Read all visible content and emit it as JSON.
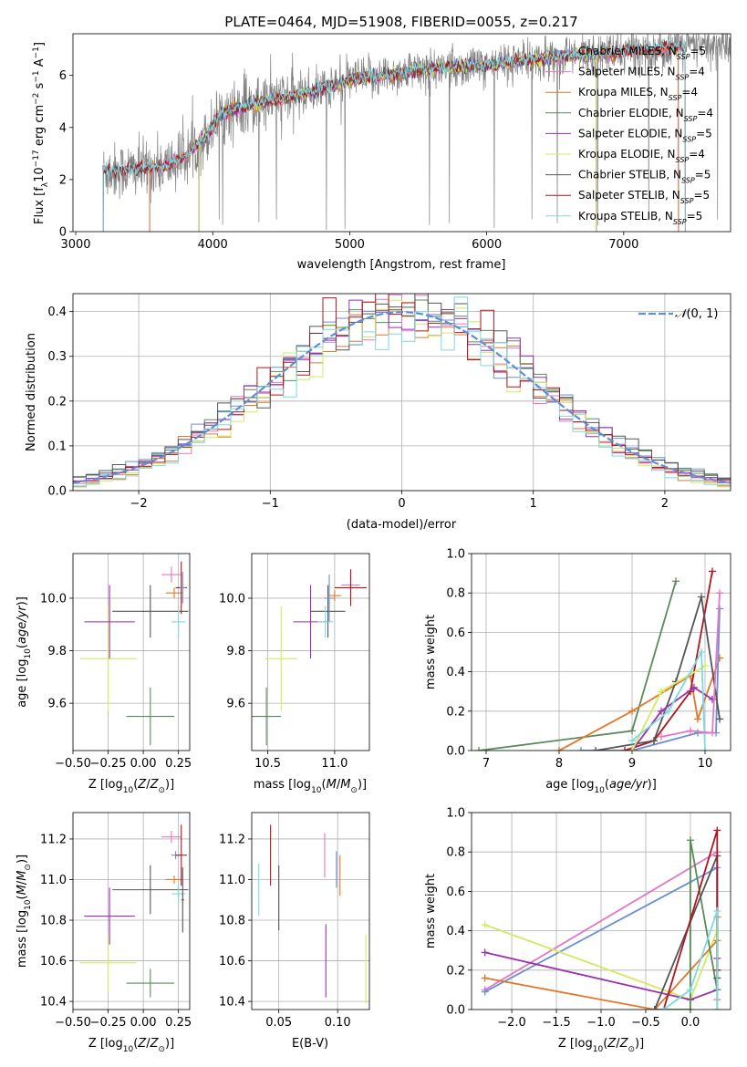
{
  "title": "PLATE=0464, MJD=51908, FIBERID=0055, z=0.217",
  "colors": {
    "chab_miles": "#6a8fd0",
    "salp_miles": "#e377c2",
    "krou_miles": "#e2772a",
    "chab_elodie": "#5a8a5a",
    "salp_elodie": "#9b2fae",
    "krou_elodie": "#d4ea5e",
    "chab_stelib": "#555555",
    "salp_stelib": "#b0141e",
    "krou_stelib": "#7fd8e0",
    "data": "#808080",
    "normal": "#5b8fd9"
  },
  "chart_data": [
    {
      "id": "spectrum",
      "type": "line",
      "xlabel": "wavelength [Angstrom, rest frame]",
      "ylabel": "Flux [f",
      "xlim": [
        2980,
        7780
      ],
      "ylim": [
        0,
        7.6
      ],
      "xticks": [
        3000,
        4000,
        5000,
        6000,
        7000
      ],
      "yticks": [
        0,
        2,
        4,
        6
      ],
      "legend": [
        {
          "key": "chab_miles",
          "label": "Chabrier MILES, N",
          "sub": "SSP",
          "tail": "=5"
        },
        {
          "key": "salp_miles",
          "label": "Salpeter MILES, N",
          "sub": "SSP",
          "tail": "=4"
        },
        {
          "key": "krou_miles",
          "label": "Kroupa MILES, N",
          "sub": "SSP",
          "tail": "=4"
        },
        {
          "key": "chab_elodie",
          "label": "Chabrier ELODIE, N",
          "sub": "SSP",
          "tail": "=4"
        },
        {
          "key": "salp_elodie",
          "label": "Salpeter ELODIE, N",
          "sub": "SSP",
          "tail": "=5"
        },
        {
          "key": "krou_elodie",
          "label": "Kroupa ELODIE, N",
          "sub": "SSP",
          "tail": "=4"
        },
        {
          "key": "chab_stelib",
          "label": "Chabrier STELIB, N",
          "sub": "SSP",
          "tail": "=5"
        },
        {
          "key": "salp_stelib",
          "label": "Salpeter STELIB, N",
          "sub": "SSP",
          "tail": "=5"
        },
        {
          "key": "krou_stelib",
          "label": "Kroupa STELIB, N",
          "sub": "SSP",
          "tail": "=5"
        }
      ],
      "continuum": [
        [
          3200,
          2.3
        ],
        [
          3500,
          2.4
        ],
        [
          3650,
          2.5
        ],
        [
          3800,
          2.9
        ],
        [
          3950,
          3.6
        ],
        [
          4050,
          4.5
        ],
        [
          4300,
          4.9
        ],
        [
          4600,
          5.2
        ],
        [
          5000,
          5.8
        ],
        [
          5500,
          6.2
        ],
        [
          6000,
          6.4
        ],
        [
          6500,
          6.7
        ],
        [
          7000,
          6.9
        ],
        [
          7450,
          7.1
        ]
      ],
      "model_starts": {
        "chab_miles": 3540,
        "salp_miles": 3540,
        "krou_miles": 3540,
        "chab_elodie": 3900,
        "salp_elodie": 3900,
        "krou_elodie": 3900,
        "chab_stelib": 3200,
        "salp_stelib": 3200,
        "krou_stelib": 3200
      },
      "model_ends": {
        "chab_miles": 7400,
        "salp_miles": 7400,
        "krou_miles": 7400,
        "chab_elodie": 6800,
        "salp_elodie": 6800,
        "krou_elodie": 6800,
        "chab_stelib": 7450,
        "salp_stelib": 7450,
        "krou_stelib": 7450
      }
    },
    {
      "id": "residuals",
      "type": "histogram",
      "xlabel": "(data-model)/error",
      "ylabel": "Normed distribution",
      "xlim": [
        -2.5,
        2.5
      ],
      "ylim": [
        0,
        0.44
      ],
      "xticks": [
        -2,
        -1,
        0,
        1,
        2
      ],
      "yticks": [
        0.0,
        0.1,
        0.2,
        0.3,
        0.4
      ],
      "legend_label": "(0, 1)",
      "bin_width": 0.1,
      "series_keys": [
        "chab_miles",
        "salp_miles",
        "krou_miles",
        "chab_elodie",
        "salp_elodie",
        "krou_elodie",
        "chab_stelib",
        "salp_stelib",
        "krou_stelib"
      ]
    },
    {
      "id": "age_vs_Z",
      "type": "errorbar",
      "xlabel": "Z [log",
      "ylabel": "age  [log",
      "xlim": [
        -0.5,
        0.33
      ],
      "ylim": [
        9.42,
        10.17
      ],
      "xticks": [
        -0.5,
        -0.25,
        0.0,
        0.25
      ],
      "yticks": [
        9.6,
        9.8,
        10.0
      ],
      "points": [
        {
          "key": "krou_elodie",
          "x": -0.25,
          "xerr": 0.2,
          "y": 9.77,
          "yerr": 0.2
        },
        {
          "key": "salp_elodie",
          "x": -0.24,
          "xerr": 0.18,
          "y": 9.91,
          "yerr": 0.14
        },
        {
          "key": "chab_elodie",
          "x": 0.05,
          "xerr": 0.17,
          "y": 9.55,
          "yerr": 0.11
        },
        {
          "key": "chab_stelib",
          "x": 0.05,
          "xerr": 0.27,
          "y": 9.95,
          "yerr": 0.1
        },
        {
          "key": "krou_stelib",
          "x": 0.25,
          "xerr": 0.05,
          "y": 9.91,
          "yerr": 0.06
        },
        {
          "key": "salp_miles",
          "x": 0.2,
          "xerr": 0.07,
          "y": 10.09,
          "yerr": 0.03
        },
        {
          "key": "krou_miles",
          "x": 0.22,
          "xerr": 0.06,
          "y": 10.02,
          "yerr": 0.02
        },
        {
          "key": "salp_stelib",
          "x": 0.27,
          "xerr": 0.04,
          "y": 10.04,
          "yerr": 0.1
        },
        {
          "key": "chab_miles",
          "x": 0.28,
          "xerr": 0.02,
          "y": 10.04,
          "yerr": 0.06
        }
      ]
    },
    {
      "id": "age_vs_mass",
      "type": "errorbar",
      "xlabel": "mass [log",
      "ylabel": "",
      "xlim": [
        10.38,
        11.26
      ],
      "ylim": [
        9.42,
        10.17
      ],
      "xticks": [
        10.5,
        11.0
      ],
      "yticks": [
        9.6,
        9.8,
        10.0
      ],
      "points": [
        {
          "key": "krou_elodie",
          "x": 10.6,
          "xerr": 0.12,
          "y": 9.77,
          "yerr": 0.2
        },
        {
          "key": "chab_elodie",
          "x": 10.49,
          "xerr": 0.11,
          "y": 9.55,
          "yerr": 0.11
        },
        {
          "key": "salp_elodie",
          "x": 10.82,
          "xerr": 0.13,
          "y": 9.91,
          "yerr": 0.14
        },
        {
          "key": "chab_stelib",
          "x": 10.95,
          "xerr": 0.13,
          "y": 9.95,
          "yerr": 0.1
        },
        {
          "key": "krou_stelib",
          "x": 10.93,
          "xerr": 0.06,
          "y": 9.91,
          "yerr": 0.06
        },
        {
          "key": "chab_miles",
          "x": 10.96,
          "xerr": 0.04,
          "y": 10.0,
          "yerr": 0.09
        },
        {
          "key": "krou_miles",
          "x": 11.0,
          "xerr": 0.05,
          "y": 10.01,
          "yerr": 0.02
        },
        {
          "key": "salp_miles",
          "x": 11.12,
          "xerr": 0.07,
          "y": 10.05,
          "yerr": 0.05
        },
        {
          "key": "salp_stelib",
          "x": 11.12,
          "xerr": 0.12,
          "y": 10.04,
          "yerr": 0.07
        }
      ]
    },
    {
      "id": "weight_vs_age",
      "type": "line",
      "xlabel": "age  [log",
      "ylabel": "mass weight",
      "xlim": [
        6.8,
        10.35
      ],
      "ylim": [
        0,
        1
      ],
      "xticks": [
        7,
        8,
        9,
        10
      ],
      "yticks": [
        0.0,
        0.2,
        0.4,
        0.6,
        0.8,
        1.0
      ],
      "series": [
        {
          "key": "chab_elodie",
          "x": [
            6.9,
            9.0,
            9.6
          ],
          "y": [
            0.0,
            0.1,
            0.86
          ]
        },
        {
          "key": "krou_miles",
          "x": [
            8.0,
            9.0,
            9.8,
            9.9,
            10.2
          ],
          "y": [
            0.0,
            0.2,
            0.38,
            0.16,
            0.47
          ]
        },
        {
          "key": "chab_miles",
          "x": [
            8.3,
            9.0,
            9.9,
            10.15,
            10.2
          ],
          "y": [
            0.0,
            0.0,
            0.09,
            0.09,
            0.72
          ]
        },
        {
          "key": "salp_stelib",
          "x": [
            8.9,
            9.3,
            9.8,
            10.1
          ],
          "y": [
            0.0,
            0.05,
            0.3,
            0.91
          ]
        },
        {
          "key": "chab_stelib",
          "x": [
            8.5,
            9.3,
            9.6,
            9.95,
            10.2
          ],
          "y": [
            0.0,
            0.05,
            0.35,
            0.78,
            0.16
          ]
        },
        {
          "key": "salp_elodie",
          "x": [
            9.0,
            9.4,
            9.85,
            10.1
          ],
          "y": [
            0.0,
            0.2,
            0.32,
            0.26
          ]
        },
        {
          "key": "krou_elodie",
          "x": [
            9.0,
            9.4,
            10.0
          ],
          "y": [
            0.0,
            0.3,
            0.43
          ]
        },
        {
          "key": "krou_stelib",
          "x": [
            9.0,
            9.5,
            9.95,
            10.0
          ],
          "y": [
            0.05,
            0.2,
            0.5,
            0.0
          ]
        },
        {
          "key": "salp_miles",
          "x": [
            9.4,
            9.8,
            10.1,
            10.2
          ],
          "y": [
            0.07,
            0.1,
            0.09,
            0.8
          ]
        }
      ]
    },
    {
      "id": "mass_vs_Z",
      "type": "errorbar",
      "xlabel": "Z [log",
      "ylabel": "mass [log",
      "xlim": [
        -0.5,
        0.33
      ],
      "ylim": [
        10.36,
        11.33
      ],
      "xticks": [
        -0.5,
        -0.25,
        0.0,
        0.25
      ],
      "yticks": [
        10.4,
        10.6,
        10.8,
        11.0,
        11.2
      ],
      "points": [
        {
          "key": "krou_elodie",
          "x": -0.25,
          "xerr": 0.2,
          "y": 10.59,
          "yerr": 0.14
        },
        {
          "key": "salp_elodie",
          "x": -0.24,
          "xerr": 0.18,
          "y": 10.82,
          "yerr": 0.14
        },
        {
          "key": "chab_elodie",
          "x": 0.05,
          "xerr": 0.17,
          "y": 10.49,
          "yerr": 0.07
        },
        {
          "key": "chab_stelib",
          "x": 0.05,
          "xerr": 0.27,
          "y": 10.95,
          "yerr": 0.12
        },
        {
          "key": "krou_stelib",
          "x": 0.25,
          "xerr": 0.05,
          "y": 10.93,
          "yerr": 0.05
        },
        {
          "key": "salp_miles",
          "x": 0.2,
          "xerr": 0.07,
          "y": 11.21,
          "yerr": 0.03
        },
        {
          "key": "krou_miles",
          "x": 0.22,
          "xerr": 0.06,
          "y": 11.0,
          "yerr": 0.02
        },
        {
          "key": "chab_miles",
          "x": 0.23,
          "xerr": 0.03,
          "y": 11.12,
          "yerr": 0.02
        },
        {
          "key": "salp_stelib",
          "x": 0.27,
          "xerr": 0.04,
          "y": 11.12,
          "yerr": 0.15
        },
        {
          "key": "chab_stelib",
          "x": 0.28,
          "xerr": 0.01,
          "y": 10.9,
          "yerr": 0.16
        }
      ]
    },
    {
      "id": "mass_vs_ebv",
      "type": "errorbar",
      "xlabel": "E(B-V)",
      "ylabel": "",
      "xlim": [
        0.027,
        0.127
      ],
      "ylim": [
        10.36,
        11.33
      ],
      "xticks": [
        0.05,
        0.1
      ],
      "yticks": [
        10.4,
        10.6,
        10.8,
        11.0,
        11.2
      ],
      "points": [
        {
          "key": "krou_stelib",
          "x": 0.033,
          "xerr": 0,
          "y": 10.95,
          "yerr": 0.13
        },
        {
          "key": "salp_stelib",
          "x": 0.043,
          "xerr": 0,
          "y": 11.12,
          "yerr": 0.15
        },
        {
          "key": "chab_stelib",
          "x": 0.05,
          "xerr": 0,
          "y": 10.91,
          "yerr": 0.16
        },
        {
          "key": "salp_miles",
          "x": 0.089,
          "xerr": 0,
          "y": 11.12,
          "yerr": 0.11
        },
        {
          "key": "salp_elodie",
          "x": 0.09,
          "xerr": 0,
          "y": 10.6,
          "yerr": 0.18
        },
        {
          "key": "chab_miles",
          "x": 0.099,
          "xerr": 0,
          "y": 11.05,
          "yerr": 0.09
        },
        {
          "key": "krou_miles",
          "x": 0.102,
          "xerr": 0,
          "y": 11.02,
          "yerr": 0.1
        },
        {
          "key": "krou_elodie",
          "x": 0.124,
          "xerr": 0,
          "y": 10.56,
          "yerr": 0.17
        }
      ]
    },
    {
      "id": "weight_vs_Z",
      "type": "line",
      "xlabel": "Z [log",
      "ylabel": "mass weight",
      "xlim": [
        -2.45,
        0.45
      ],
      "ylim": [
        0,
        1
      ],
      "xticks": [
        -2.0,
        -1.5,
        -1.0,
        -0.5,
        0.0
      ],
      "yticks": [
        0.0,
        0.2,
        0.4,
        0.6,
        0.8,
        1.0
      ],
      "series": [
        {
          "key": "salp_miles",
          "x": [
            -2.3,
            0.3,
            0.3
          ],
          "y": [
            0.1,
            0.8,
            0.05
          ]
        },
        {
          "key": "chab_miles",
          "x": [
            -2.3,
            0.3,
            0.3
          ],
          "y": [
            0.09,
            0.72,
            0.0
          ]
        },
        {
          "key": "krou_elodie",
          "x": [
            -2.3,
            0.0,
            0.3,
            0.3
          ],
          "y": [
            0.43,
            0.05,
            0.4,
            0.0
          ]
        },
        {
          "key": "salp_elodie",
          "x": [
            -2.3,
            0.0,
            0.3,
            0.3
          ],
          "y": [
            0.29,
            0.05,
            0.1,
            0.26
          ]
        },
        {
          "key": "krou_miles",
          "x": [
            -2.3,
            -0.4,
            0.3,
            0.3
          ],
          "y": [
            0.16,
            0.0,
            0.35,
            0.47
          ]
        },
        {
          "key": "chab_elodie",
          "x": [
            -0.4,
            0.0,
            0.0,
            0.3
          ],
          "y": [
            0.0,
            0.0,
            0.86,
            0.1
          ]
        },
        {
          "key": "chab_stelib",
          "x": [
            -0.4,
            0.3,
            0.3
          ],
          "y": [
            0.0,
            0.78,
            0.16
          ]
        },
        {
          "key": "salp_stelib",
          "x": [
            -0.3,
            0.3,
            0.3
          ],
          "y": [
            0.0,
            0.91,
            0.2
          ]
        },
        {
          "key": "krou_stelib",
          "x": [
            -0.3,
            0.0,
            0.3,
            0.3
          ],
          "y": [
            0.0,
            0.1,
            0.5,
            0.0
          ]
        }
      ]
    }
  ]
}
